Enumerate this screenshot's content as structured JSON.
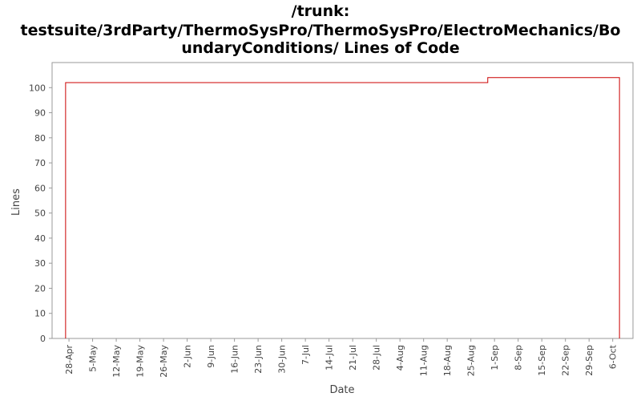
{
  "chart_data": {
    "type": "line",
    "step": "after",
    "title": [
      "/trunk:",
      "testsuite/3rdParty/ThermoSysPro/ThermoSysPro/ElectroMechanics/Bo",
      "undaryConditions/ Lines of Code"
    ],
    "x_label": "Date",
    "y_label": "Lines",
    "x": [
      "27-Apr",
      "27-Apr",
      "30-Aug",
      "8-Oct",
      "8-Oct"
    ],
    "series": [
      {
        "name": "Lines",
        "color": "#cc0000",
        "values": [
          0,
          102,
          104,
          104,
          0
        ]
      }
    ],
    "xlim": [
      "23-Apr",
      "12-Oct"
    ],
    "xticks": [
      "28-Apr",
      "5-May",
      "12-May",
      "19-May",
      "26-May",
      "2-Jun",
      "9-Jun",
      "16-Jun",
      "23-Jun",
      "30-Jun",
      "7-Jul",
      "14-Jul",
      "21-Jul",
      "28-Jul",
      "4-Aug",
      "11-Aug",
      "18-Aug",
      "25-Aug",
      "1-Sep",
      "8-Sep",
      "15-Sep",
      "22-Sep",
      "29-Sep",
      "6-Oct"
    ],
    "ylim": [
      0,
      110
    ],
    "yticks": [
      0,
      10,
      20,
      30,
      40,
      50,
      60,
      70,
      80,
      90,
      100
    ],
    "grid": false
  }
}
